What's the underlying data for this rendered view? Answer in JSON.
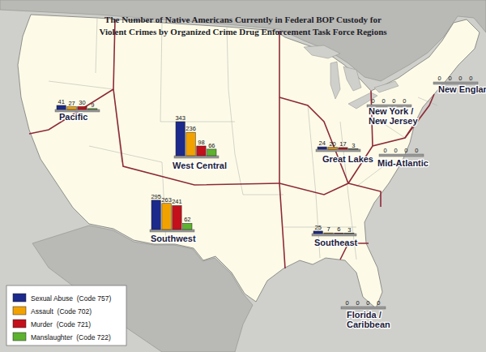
{
  "chart_data": {
    "type": "bar",
    "title": "The Number of Native Americans Currently in Federal BOP Custody for\nViolent Crimes by Organized Crime Drug Enforcement Task Force Regions",
    "categories": [
      "Pacific",
      "West Central",
      "Southwest",
      "Great Lakes",
      "Southeast",
      "New York /\nNew Jersey",
      "New England",
      "Mid-Atlantic",
      "Florida /\nCaribbean"
    ],
    "series": [
      {
        "name": "Sexual Abuse  (Code 757)",
        "color": "#1c2a8c",
        "values": [
          41,
          343,
          295,
          24,
          25,
          0,
          0,
          0,
          0
        ]
      },
      {
        "name": "Assault  (Code 702)",
        "color": "#f2a200",
        "values": [
          27,
          236,
          263,
          20,
          7,
          0,
          0,
          0,
          0
        ]
      },
      {
        "name": "Murder  (Code 721)",
        "color": "#c4101a",
        "values": [
          30,
          98,
          241,
          17,
          6,
          0,
          0,
          0,
          0
        ]
      },
      {
        "name": "Manslaughter  (Code 722)",
        "color": "#5db22e",
        "values": [
          9,
          66,
          62,
          3,
          3,
          0,
          0,
          0,
          0
        ]
      }
    ],
    "data_labels": true,
    "tick_labels": false,
    "legend": "bottom-left"
  }
}
